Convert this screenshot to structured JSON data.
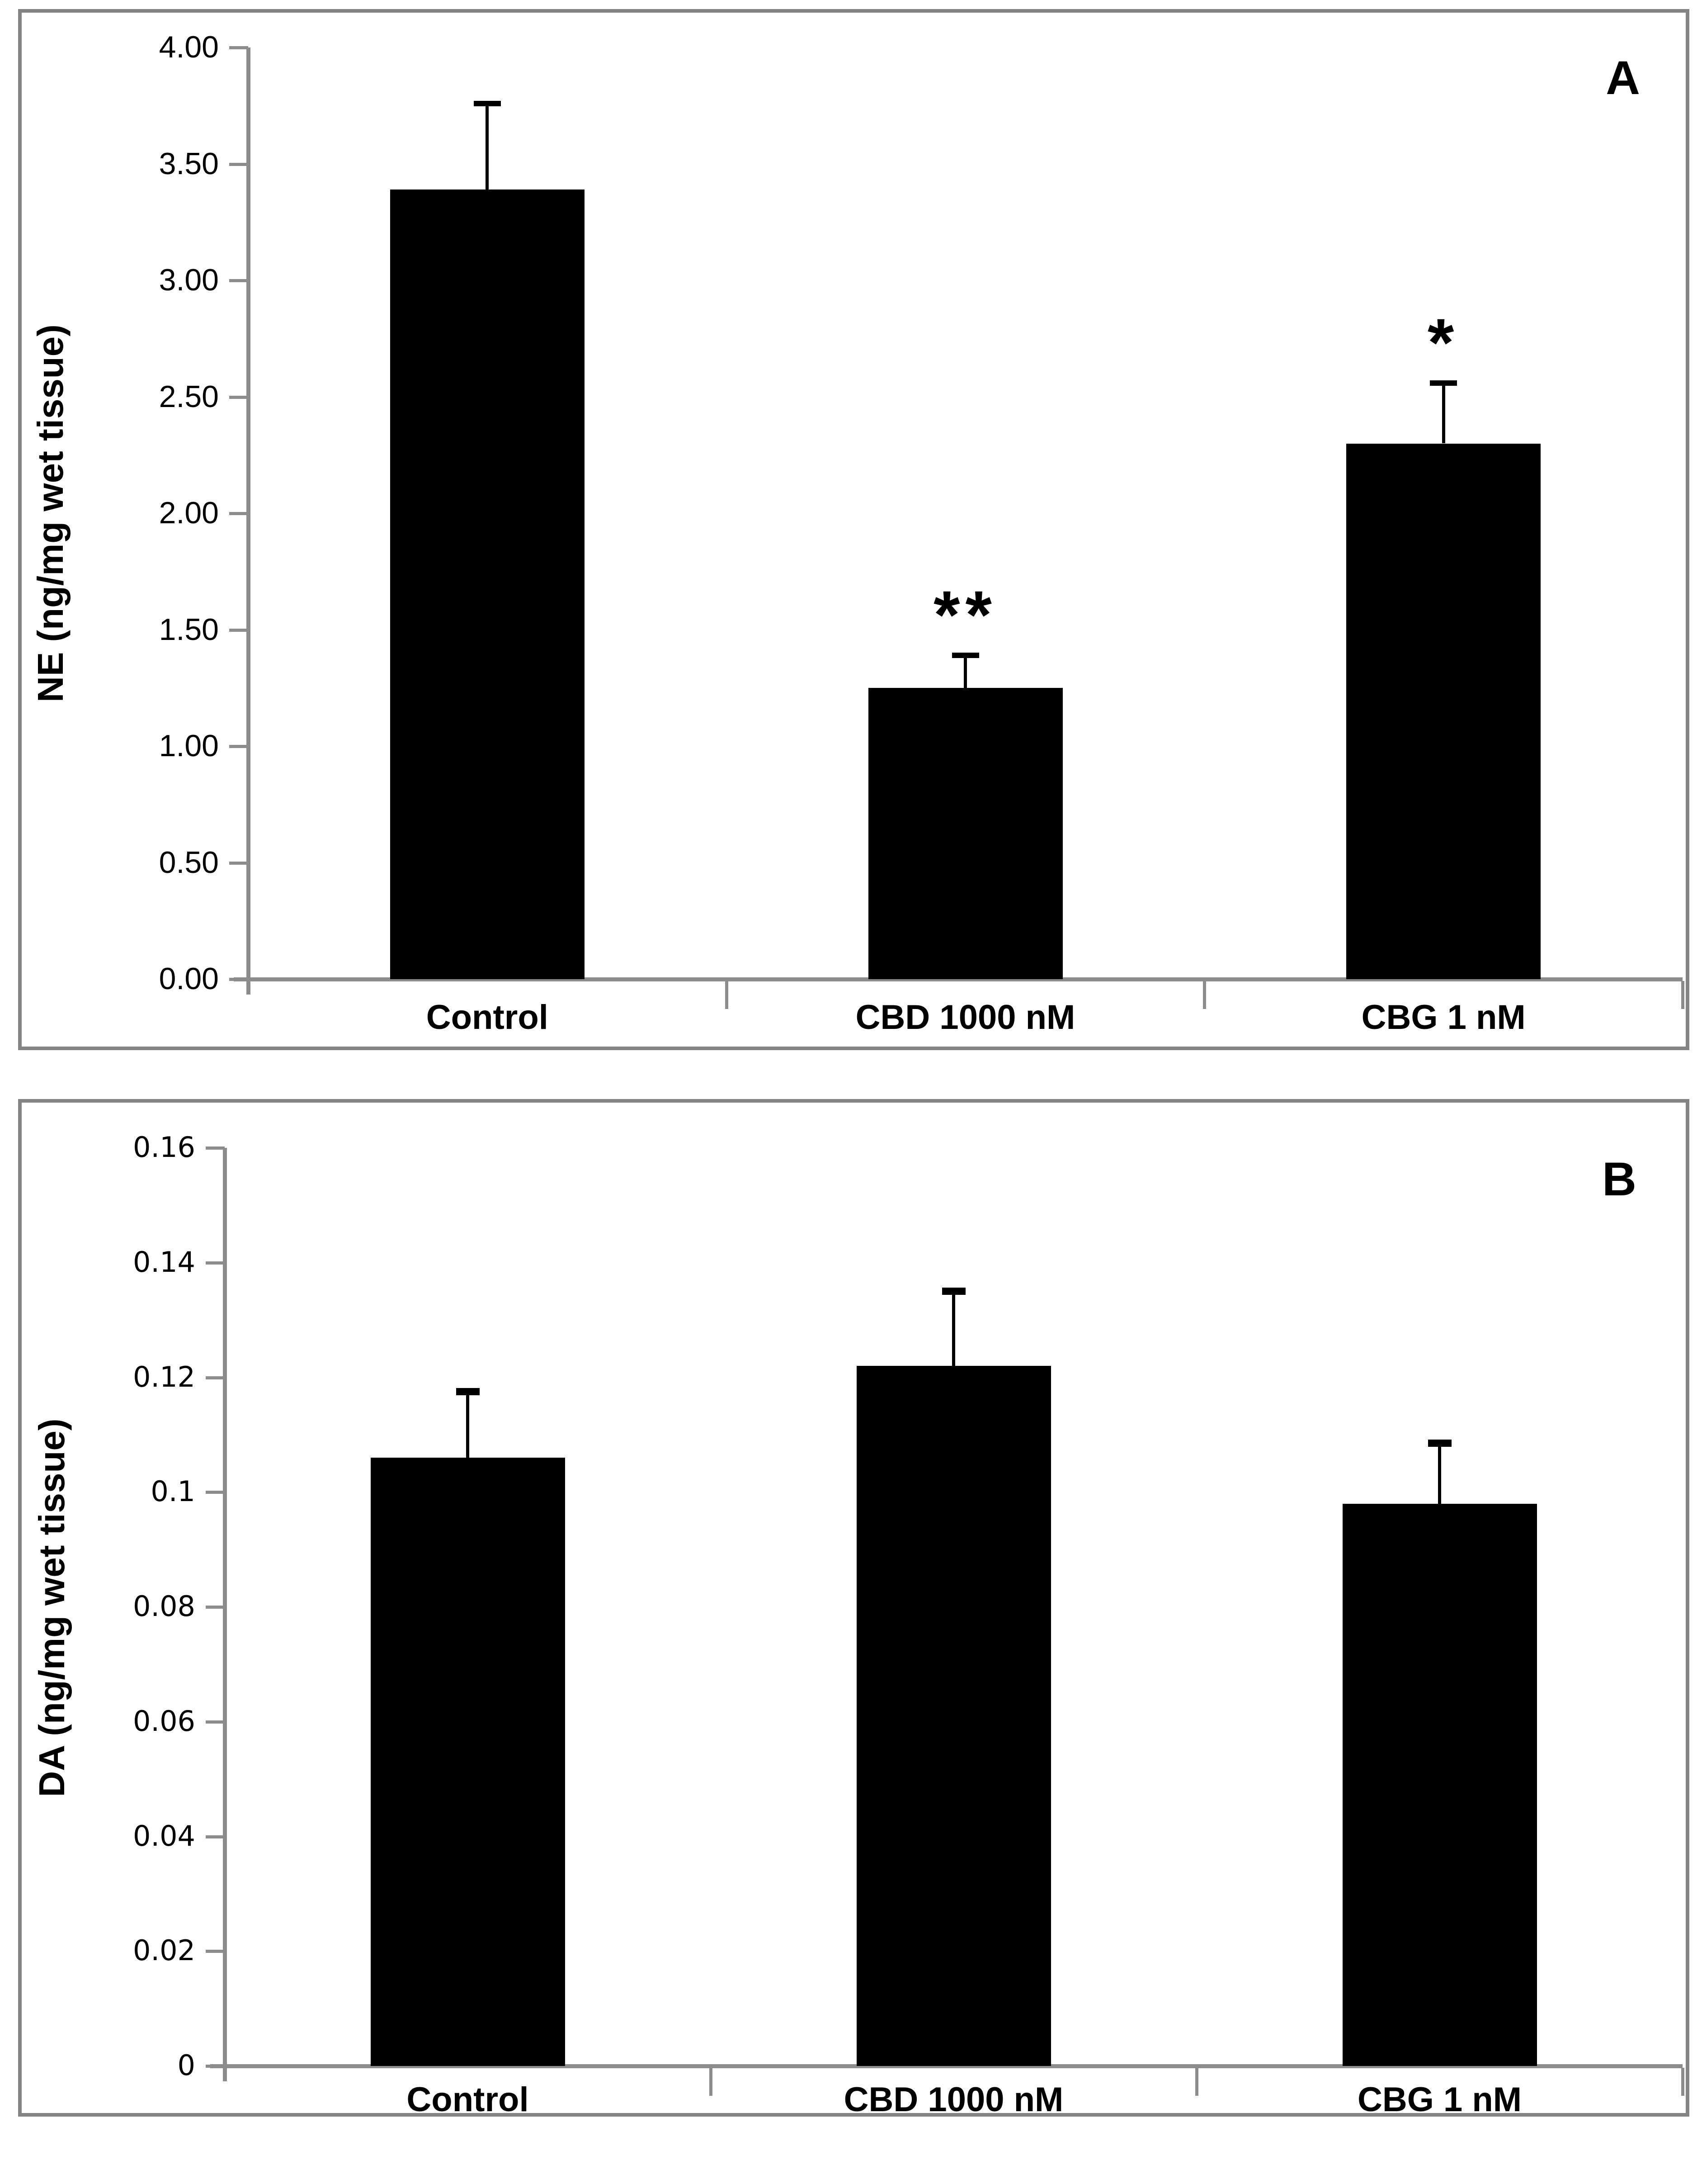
{
  "figure": {
    "description": "Two-panel bar chart figure",
    "panel_letters": [
      "A",
      "B"
    ]
  },
  "colors": {
    "bar": "#000000",
    "axis": "#8c8c8c",
    "frame_border": "#848484",
    "text": "#000000",
    "background": "#ffffff"
  },
  "chart_data": [
    {
      "type": "bar",
      "panel_label": "A",
      "title": "",
      "xlabel": "",
      "ylabel": "NE (ng/mg wet tissue)",
      "categories": [
        "Control",
        "CBD 1000 nM",
        "CBG 1 nM"
      ],
      "values": [
        3.39,
        1.25,
        2.3
      ],
      "error_bar_tops": [
        3.76,
        1.39,
        2.56
      ],
      "significance": [
        "",
        "**",
        "*"
      ],
      "ylim": [
        0,
        4.0
      ],
      "ytick_step": 0.5,
      "ytick_labels": [
        "4.00",
        "3.50",
        "3.00",
        "2.50",
        "2.00",
        "1.50",
        "1.00",
        "0.50",
        "0.00"
      ],
      "grid": false,
      "legend": "none",
      "bar_color": "#000000"
    },
    {
      "type": "bar",
      "panel_label": "B",
      "title": "",
      "xlabel": "",
      "ylabel": "DA (ng/mg wet tissue)",
      "categories": [
        "Control",
        "CBD 1000 nM",
        "CBG 1 nM"
      ],
      "values": [
        0.106,
        0.122,
        0.098
      ],
      "error_bar_tops": [
        0.1175,
        0.135,
        0.1085
      ],
      "significance": [
        "",
        "",
        ""
      ],
      "ylim": [
        0,
        0.16
      ],
      "ytick_step": 0.02,
      "ytick_labels": [
        "0.16",
        "0.14",
        "0.12",
        "0.1",
        "0.08",
        "0.06",
        "0.04",
        "0.02",
        "0"
      ],
      "grid": false,
      "legend": "none",
      "bar_color": "#000000"
    }
  ]
}
